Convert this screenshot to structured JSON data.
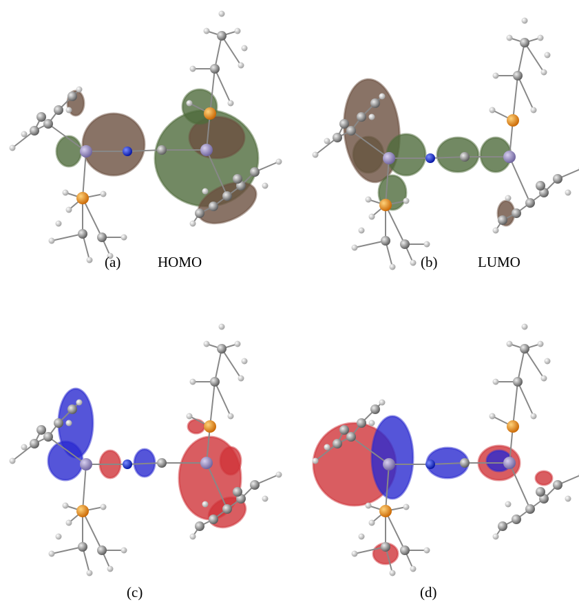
{
  "panels": [
    {
      "label": "(a)",
      "caption": "HOMO"
    },
    {
      "label": "(b)",
      "caption": "LUMO"
    },
    {
      "label": "(c)"
    },
    {
      "label": "(d)"
    }
  ]
}
